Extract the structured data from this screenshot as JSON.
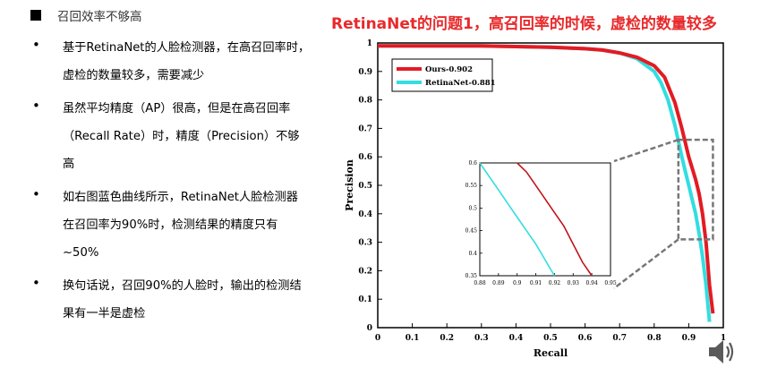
{
  "heading": "召回效率不够高",
  "slide_title": "RetinaNet的问题1，高召回率的时候，虚检的数量较多",
  "bullets": [
    {
      "lines": [
        "基于RetinaNet的人脸检测器，在高召回率时，",
        "虚检的数量较多，需要减少"
      ]
    },
    {
      "lines": [
        "虽然平均精度（AP）很高，但是在高召回率",
        "（Recall Rate）时，精度（Precision）不够",
        "高"
      ]
    },
    {
      "lines": [
        "如右图蓝色曲线所示，RetinaNet人脸检测器",
        "在召回率为90%时，检测结果的精度只有",
        "~50%"
      ]
    },
    {
      "lines": [
        "换句话说，召回90%的人脸时，输出的检测结",
        "果有一半是虚检"
      ]
    }
  ],
  "bullet_symbol": "•",
  "speaker_icon": "speaker-icon",
  "colors": {
    "title": "#e8292b",
    "ours": "#e31b23",
    "retina": "#33dde0"
  },
  "chart_data": [
    {
      "type": "line",
      "xlabel": "Recall",
      "ylabel": "Precision",
      "xlim": [
        0,
        1
      ],
      "ylim": [
        0,
        1
      ],
      "xticks": [
        "0",
        "0.1",
        "0.2",
        "0.3",
        "0.4",
        "0.5",
        "0.6",
        "0.7",
        "0.8",
        "0.9",
        "1"
      ],
      "yticks": [
        "0",
        "0.1",
        "0.2",
        "0.3",
        "0.4",
        "0.5",
        "0.6",
        "0.7",
        "0.8",
        "0.9",
        "1"
      ],
      "legend_position": "top-left",
      "series": [
        {
          "name": "Ours-0.902",
          "color": "#e31b23",
          "x": [
            0,
            0.3,
            0.5,
            0.6,
            0.65,
            0.7,
            0.75,
            0.8,
            0.83,
            0.86,
            0.88,
            0.9,
            0.92,
            0.93,
            0.94,
            0.95,
            0.96,
            0.97
          ],
          "y": [
            0.99,
            0.99,
            0.985,
            0.98,
            0.975,
            0.965,
            0.95,
            0.92,
            0.88,
            0.79,
            0.7,
            0.6,
            0.52,
            0.47,
            0.4,
            0.3,
            0.15,
            0.05
          ]
        },
        {
          "name": "RetinaNet-0.881",
          "color": "#33dde0",
          "x": [
            0,
            0.3,
            0.5,
            0.6,
            0.65,
            0.7,
            0.75,
            0.8,
            0.82,
            0.84,
            0.86,
            0.88,
            0.89,
            0.9,
            0.92,
            0.93,
            0.94,
            0.95,
            0.96
          ],
          "y": [
            0.99,
            0.99,
            0.985,
            0.98,
            0.975,
            0.965,
            0.945,
            0.9,
            0.86,
            0.8,
            0.71,
            0.6,
            0.55,
            0.5,
            0.4,
            0.33,
            0.25,
            0.15,
            0.02
          ]
        }
      ]
    },
    {
      "type": "line",
      "xlim": [
        0.88,
        0.95
      ],
      "ylim": [
        0.35,
        0.6
      ],
      "xticks": [
        "0.88",
        "0.89",
        "0.9",
        "0.91",
        "0.92",
        "0.93",
        "0.94",
        "0.95"
      ],
      "yticks": [
        "0.35",
        "0.4",
        "0.45",
        "0.5",
        "0.55",
        "0.6"
      ],
      "series": [
        {
          "name": "Ours-0.902",
          "color": "#c0141c",
          "x": [
            0.9,
            0.905,
            0.91,
            0.915,
            0.92,
            0.925,
            0.93,
            0.935,
            0.94
          ],
          "y": [
            0.6,
            0.58,
            0.55,
            0.52,
            0.49,
            0.46,
            0.42,
            0.38,
            0.35
          ]
        },
        {
          "name": "RetinaNet-0.881",
          "color": "#33dde0",
          "x": [
            0.88,
            0.885,
            0.89,
            0.895,
            0.9,
            0.905,
            0.91,
            0.915,
            0.92
          ],
          "y": [
            0.6,
            0.57,
            0.54,
            0.51,
            0.48,
            0.45,
            0.42,
            0.385,
            0.35
          ]
        }
      ]
    }
  ]
}
